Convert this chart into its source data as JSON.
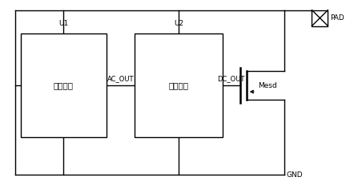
{
  "bg_color": "#ffffff",
  "line_color": "#000000",
  "line_width": 1.0,
  "font_size": 6.5,
  "u1_label": "U1",
  "u2_label": "U2",
  "u1_text": "交流检测",
  "u2_text": "直流检测",
  "ac_out_label": "AC_OUT",
  "dc_out_label": "DC_OUT",
  "mesd_label": "Mesd",
  "pad_label": "PAD",
  "gnd_label": "GND"
}
